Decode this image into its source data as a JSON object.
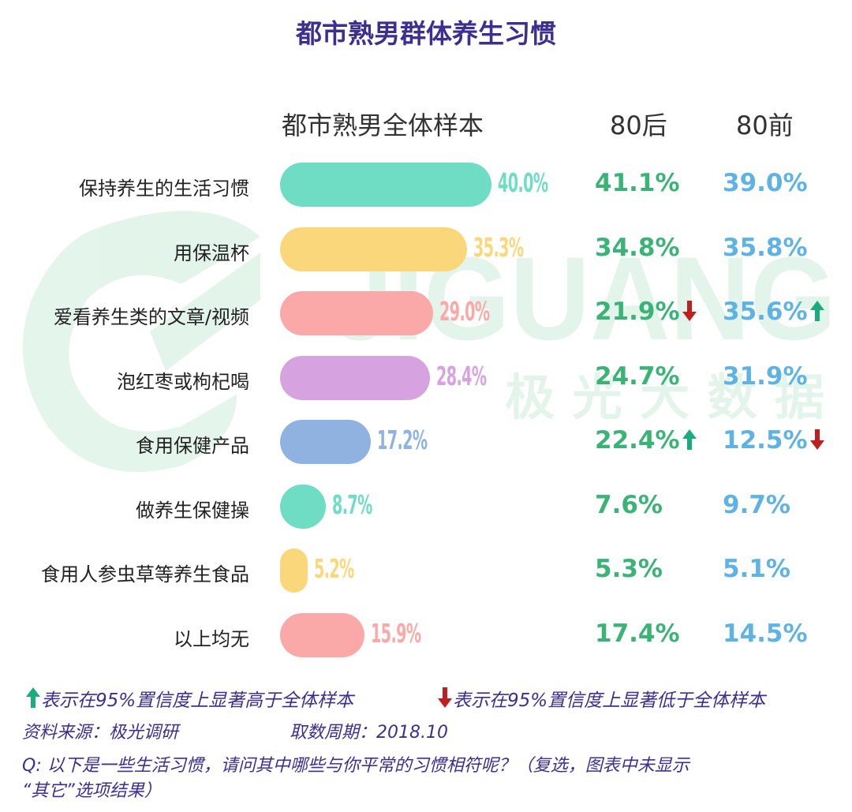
{
  "title": "都市熟男群体养生习惯",
  "watermark": {
    "brand": "JIGUANG",
    "cn": "极 光 大 数 据"
  },
  "columns": {
    "total": "都市熟男全体样本",
    "g80h": "80后",
    "g80q": "80前"
  },
  "rows": [
    {
      "label": "保持养生的生活习惯",
      "total": "40.0%",
      "g80h": "41.1%",
      "g80h_sig": "",
      "g80q": "39.0%",
      "g80q_sig": "",
      "color": "#6fdcc4"
    },
    {
      "label": "用保温杯",
      "total": "35.3%",
      "g80h": "34.8%",
      "g80h_sig": "",
      "g80q": "35.8%",
      "g80q_sig": "",
      "color": "#fbd77c"
    },
    {
      "label": "爱看养生类的文章/视频",
      "total": "29.0%",
      "g80h": "21.9%",
      "g80h_sig": "down",
      "g80q": "35.6%",
      "g80q_sig": "up",
      "color": "#fba8a8"
    },
    {
      "label": "泡红枣或枸杞喝",
      "total": "28.4%",
      "g80h": "24.7%",
      "g80h_sig": "",
      "g80q": "31.9%",
      "g80q_sig": "",
      "color": "#d7a2e0"
    },
    {
      "label": "食用保健产品",
      "total": "17.2%",
      "g80h": "22.4%",
      "g80h_sig": "up",
      "g80q": "12.5%",
      "g80q_sig": "down",
      "color": "#8fb2e1"
    },
    {
      "label": "做养生保健操",
      "total": "8.7%",
      "g80h": "7.6%",
      "g80h_sig": "",
      "g80q": "9.7%",
      "g80q_sig": "",
      "color": "#6fdcc4"
    },
    {
      "label": "食用人参虫草等养生食品",
      "total": "5.2%",
      "g80h": "5.3%",
      "g80h_sig": "",
      "g80q": "5.1%",
      "g80q_sig": "",
      "color": "#fbd77c"
    },
    {
      "label": "以上均无",
      "total": "15.9%",
      "g80h": "17.4%",
      "g80h_sig": "",
      "g80q": "14.5%",
      "g80q_sig": "",
      "color": "#fba8a8"
    }
  ],
  "chart_data": {
    "type": "bar",
    "title": "都市熟男群体养生习惯",
    "categories": [
      "保持养生的生活习惯",
      "用保温杯",
      "爱看养生类的文章/视频",
      "泡红枣或枸杞喝",
      "食用保健产品",
      "做养生保健操",
      "食用人参虫草等养生食品",
      "以上均无"
    ],
    "series": [
      {
        "name": "都市熟男全体样本",
        "values": [
          40.0,
          35.3,
          29.0,
          28.4,
          17.2,
          8.7,
          5.2,
          15.9
        ]
      },
      {
        "name": "80后",
        "values": [
          41.1,
          34.8,
          21.9,
          24.7,
          22.4,
          7.6,
          5.3,
          17.4
        ]
      },
      {
        "name": "80前",
        "values": [
          39.0,
          35.8,
          35.6,
          31.9,
          12.5,
          9.7,
          5.1,
          14.5
        ]
      }
    ],
    "unit": "%"
  },
  "legend": {
    "up_text": "表示在95%置信度上显著高于全体样本",
    "down_text": "表示在95%置信度上显著低于全体样本",
    "up_color": "#1aab7f",
    "down_color": "#c01f1f"
  },
  "notes": {
    "source": "资料来源：极光调研",
    "period": "取数周期：2018.10",
    "question_line1": "Q: 以下是一些生活习惯，请问其中哪些与你平常的习惯相符呢？（复选，图表中未显示",
    "question_line2": "“其它”选项结果）"
  }
}
